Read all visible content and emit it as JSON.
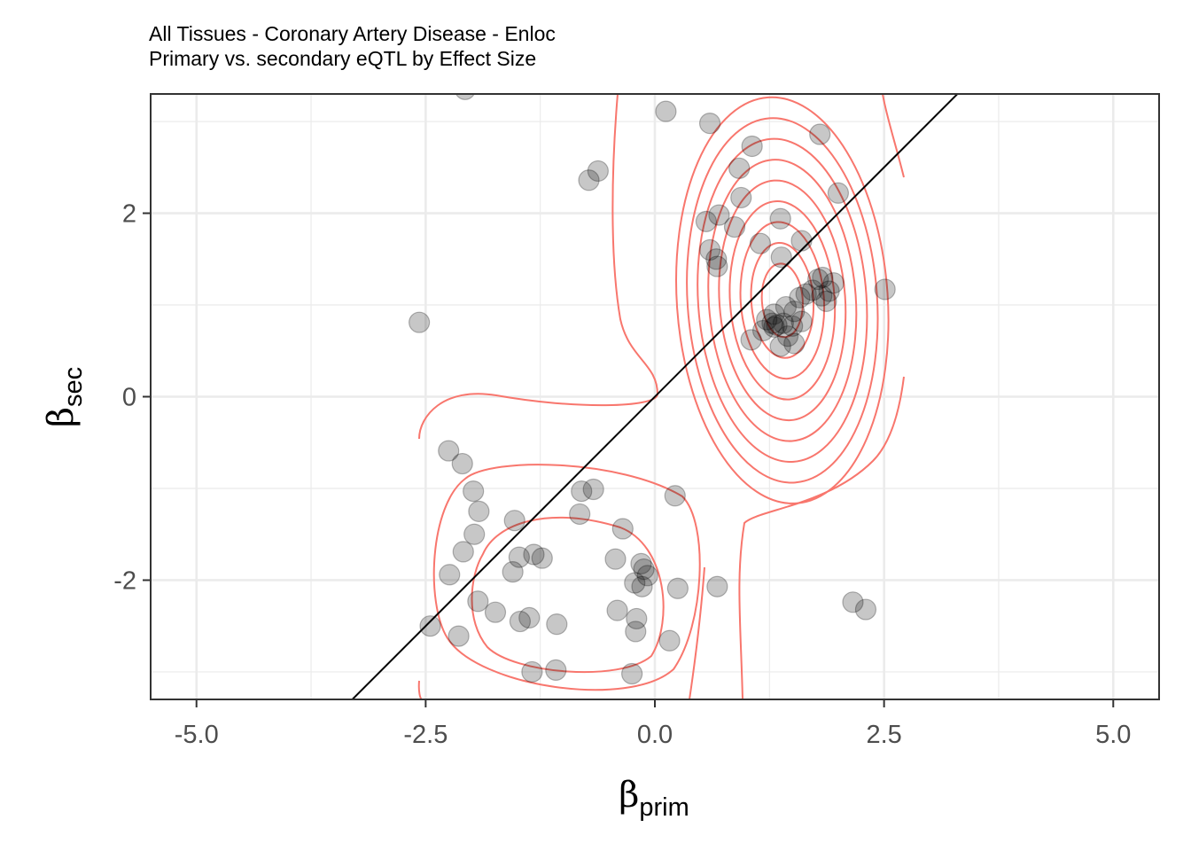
{
  "chart_data": {
    "type": "scatter",
    "title": "All Tissues - Coronary Artery Disease - Enloc",
    "subtitle": "Primary vs. secondary eQTL by Effect Size",
    "xlabel": {
      "symbol": "β",
      "subscript": "prim"
    },
    "ylabel": {
      "symbol": "β",
      "subscript": "sec"
    },
    "xlim": [
      -5.5,
      5.5
    ],
    "ylim": [
      -3.3,
      3.3
    ],
    "x_ticks": [
      {
        "value": -5,
        "label": "-5.0"
      },
      {
        "value": -2.5,
        "label": "-2.5"
      },
      {
        "value": 0,
        "label": "0.0"
      },
      {
        "value": 2.5,
        "label": "2.5"
      },
      {
        "value": 5,
        "label": "5.0"
      }
    ],
    "y_ticks": [
      {
        "value": -2,
        "label": "-2"
      },
      {
        "value": 0,
        "label": "0"
      },
      {
        "value": 2,
        "label": "2"
      }
    ],
    "grid": true,
    "reference_line": {
      "slope": 1,
      "intercept": 0,
      "color": "#000000"
    },
    "contour_color": "#f8766d",
    "point_color": "#000000",
    "point_opacity": 0.22,
    "points": [
      [
        -2.07,
        3.35
      ],
      [
        0.12,
        3.11
      ],
      [
        0.6,
        2.98
      ],
      [
        1.8,
        2.86
      ],
      [
        1.06,
        2.73
      ],
      [
        0.92,
        2.49
      ],
      [
        -0.62,
        2.46
      ],
      [
        -0.72,
        2.36
      ],
      [
        2.0,
        2.22
      ],
      [
        0.94,
        2.17
      ],
      [
        1.37,
        1.94
      ],
      [
        0.56,
        1.91
      ],
      [
        0.7,
        1.98
      ],
      [
        0.87,
        1.85
      ],
      [
        1.6,
        1.7
      ],
      [
        1.15,
        1.67
      ],
      [
        0.6,
        1.6
      ],
      [
        0.67,
        1.5
      ],
      [
        0.68,
        1.42
      ],
      [
        1.38,
        1.52
      ],
      [
        2.51,
        1.17
      ],
      [
        1.83,
        1.3
      ],
      [
        1.78,
        1.28
      ],
      [
        1.95,
        1.24
      ],
      [
        1.72,
        1.16
      ],
      [
        1.9,
        1.15
      ],
      [
        1.82,
        1.1
      ],
      [
        1.65,
        1.12
      ],
      [
        1.58,
        1.08
      ],
      [
        1.87,
        1.04
      ],
      [
        1.43,
        0.98
      ],
      [
        1.52,
        0.93
      ],
      [
        1.3,
        0.9
      ],
      [
        1.22,
        0.84
      ],
      [
        1.28,
        0.8
      ],
      [
        1.3,
        0.76
      ],
      [
        1.33,
        0.78
      ],
      [
        1.4,
        0.8
      ],
      [
        1.5,
        0.77
      ],
      [
        1.6,
        0.82
      ],
      [
        1.18,
        0.72
      ],
      [
        1.45,
        0.66
      ],
      [
        1.05,
        0.62
      ],
      [
        1.37,
        0.55
      ],
      [
        1.52,
        0.58
      ],
      [
        -2.57,
        0.81
      ],
      [
        -2.25,
        -0.59
      ],
      [
        -2.1,
        -0.73
      ],
      [
        -1.98,
        -1.03
      ],
      [
        -1.92,
        -1.25
      ],
      [
        -1.53,
        -1.35
      ],
      [
        -0.8,
        -1.03
      ],
      [
        -0.67,
        -1.01
      ],
      [
        -0.82,
        -1.28
      ],
      [
        0.22,
        -1.08
      ],
      [
        -0.35,
        -1.44
      ],
      [
        -1.97,
        -1.5
      ],
      [
        -2.09,
        -1.69
      ],
      [
        -1.48,
        -1.75
      ],
      [
        -1.32,
        -1.72
      ],
      [
        -1.23,
        -1.76
      ],
      [
        -1.55,
        -1.91
      ],
      [
        -2.24,
        -1.94
      ],
      [
        -0.43,
        -1.77
      ],
      [
        -0.15,
        -1.82
      ],
      [
        -0.12,
        -1.88
      ],
      [
        -0.08,
        -1.95
      ],
      [
        -0.22,
        -2.03
      ],
      [
        -0.14,
        -2.07
      ],
      [
        0.25,
        -2.09
      ],
      [
        0.68,
        -2.07
      ],
      [
        -1.93,
        -2.23
      ],
      [
        -1.74,
        -2.35
      ],
      [
        -2.45,
        -2.5
      ],
      [
        -2.14,
        -2.61
      ],
      [
        -1.47,
        -2.45
      ],
      [
        -1.37,
        -2.41
      ],
      [
        -1.07,
        -2.48
      ],
      [
        -0.41,
        -2.33
      ],
      [
        -0.2,
        -2.42
      ],
      [
        -0.21,
        -2.56
      ],
      [
        0.16,
        -2.66
      ],
      [
        2.16,
        -2.24
      ],
      [
        2.3,
        -2.32
      ],
      [
        -1.34,
        -3.0
      ],
      [
        -1.08,
        -2.98
      ],
      [
        -0.25,
        -3.02
      ]
    ]
  }
}
